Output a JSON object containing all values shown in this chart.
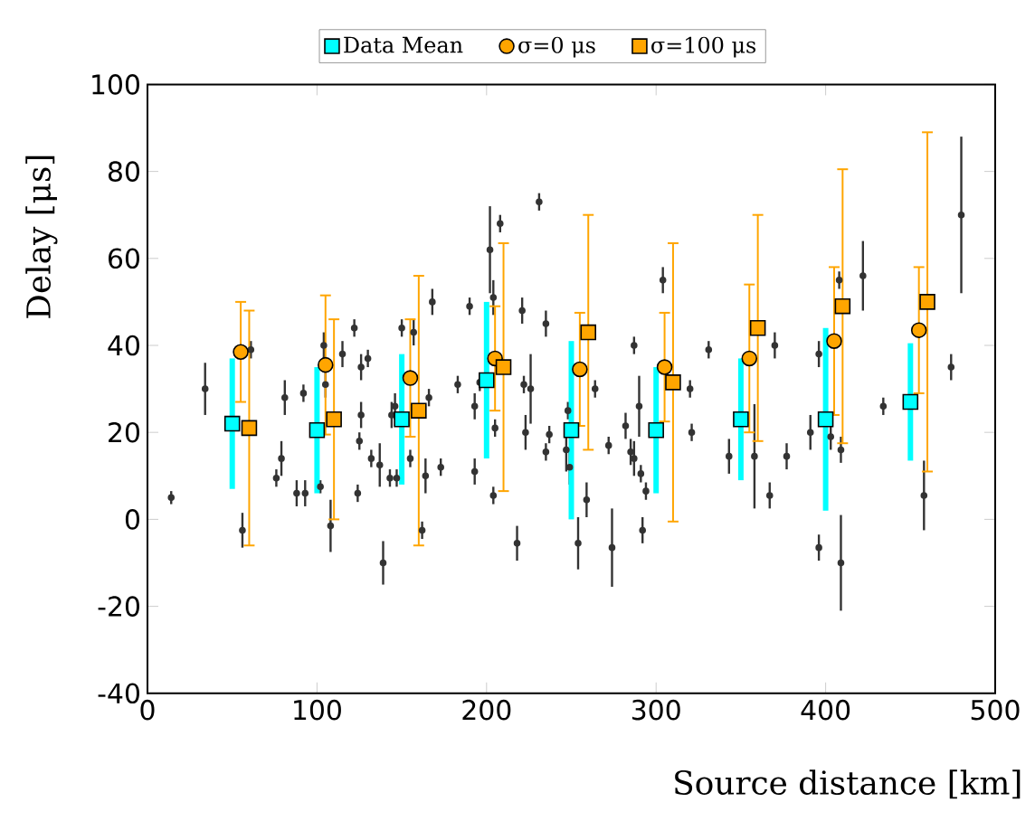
{
  "chart_data": {
    "type": "scatter",
    "xlabel": "Source distance [km]",
    "ylabel": "Delay [μs]",
    "xlim": [
      0,
      500
    ],
    "ylim": [
      -40,
      100
    ],
    "xticks": [
      0,
      100,
      200,
      300,
      400,
      500
    ],
    "yticks": [
      -40,
      -20,
      0,
      20,
      40,
      60,
      80,
      100
    ],
    "grid": false,
    "legend": "top",
    "series": [
      {
        "color": "#333333",
        "marker": "circle",
        "x": [
          14,
          34,
          56,
          61,
          76,
          79,
          81,
          88,
          92,
          93,
          102,
          104,
          105,
          108,
          115,
          122,
          124,
          125,
          126,
          126,
          130,
          132,
          137,
          139,
          143,
          144,
          147,
          146,
          150,
          155,
          157,
          162,
          164,
          166,
          168,
          173,
          183,
          190,
          193,
          193,
          196,
          202,
          204,
          204,
          205,
          208,
          218,
          221,
          222,
          223,
          226,
          231,
          235,
          237,
          235,
          247,
          248,
          249,
          254,
          259,
          264,
          272,
          274,
          287,
          282,
          285,
          287,
          290,
          291,
          292,
          294,
          304,
          320,
          321,
          331,
          343,
          358,
          367,
          370,
          377,
          391,
          396,
          396,
          403,
          408,
          409,
          409,
          422,
          434,
          458,
          474,
          480
        ],
        "values": [
          5,
          30,
          -2.5,
          39,
          9.5,
          14,
          28,
          6,
          29,
          6,
          7.5,
          40,
          31,
          -1.5,
          38,
          44,
          6,
          18,
          24,
          35,
          37,
          14,
          12.5,
          -10,
          9.5,
          24,
          9.5,
          26,
          44,
          14,
          43,
          -2.5,
          10,
          28,
          50,
          12,
          31,
          49,
          26,
          11,
          31.5,
          62,
          51,
          5.5,
          21,
          68,
          -5.5,
          48,
          31,
          20,
          30,
          73,
          45,
          19.5,
          15.5,
          16,
          25,
          12,
          -5.5,
          4.5,
          30,
          17,
          -6.5,
          40,
          21.5,
          15.5,
          14,
          26,
          10.5,
          -2.5,
          6.5,
          55,
          30,
          20,
          39,
          14.5,
          14.5,
          5.5,
          40,
          14.5,
          20,
          38,
          -6.5,
          19,
          55,
          16,
          -10,
          56,
          26,
          5.5,
          35,
          70
        ],
        "errors": [
          1.5,
          6,
          4,
          2,
          2,
          4,
          4,
          3,
          2,
          3,
          1.5,
          3,
          3,
          6,
          3,
          2,
          2,
          2,
          3,
          3,
          2,
          2,
          5,
          5,
          2,
          3,
          2,
          3,
          2,
          2,
          3,
          2,
          4,
          2,
          3,
          2,
          2,
          2,
          3,
          3,
          2,
          10,
          4,
          2,
          2,
          2,
          4,
          3,
          2,
          4,
          8,
          2,
          3,
          2,
          2,
          5,
          2,
          4,
          6,
          4,
          2,
          2,
          9,
          2,
          3,
          3,
          4,
          7,
          2,
          3,
          2,
          3,
          2,
          2,
          2,
          4,
          12,
          3,
          3,
          3,
          4,
          3,
          3,
          3,
          2,
          3,
          11,
          8,
          2,
          8,
          3,
          18
        ]
      },
      {
        "name": "Data Mean",
        "color": "#00ffff",
        "marker": "square",
        "x": [
          50,
          100,
          150,
          200,
          250,
          300,
          350,
          400,
          450
        ],
        "values": [
          22,
          20.5,
          23,
          32,
          20.5,
          20.5,
          23,
          23,
          27
        ],
        "errors": [
          15,
          14.5,
          15,
          18,
          20.5,
          14.5,
          14,
          21,
          13.5
        ]
      },
      {
        "name": "σ=0 μs",
        "color": "#ffa500",
        "marker": "circle",
        "x": [
          55,
          105,
          155,
          205,
          255,
          305,
          355,
          405,
          455
        ],
        "values": [
          38.5,
          35.5,
          32.5,
          37,
          34.5,
          35,
          37,
          41,
          43.5
        ],
        "errors": [
          11.5,
          16,
          13.5,
          12,
          13,
          12.5,
          17,
          17,
          14.5
        ]
      },
      {
        "name": "σ=100 μs",
        "color": "#ffa500",
        "marker": "square",
        "x": [
          60,
          110,
          160,
          210,
          260,
          310,
          360,
          410,
          460
        ],
        "values": [
          21,
          23,
          25,
          35,
          43,
          31.5,
          44,
          49,
          50
        ],
        "errors": [
          27,
          23,
          31,
          28.5,
          27,
          32,
          26,
          31.5,
          39
        ]
      }
    ]
  }
}
